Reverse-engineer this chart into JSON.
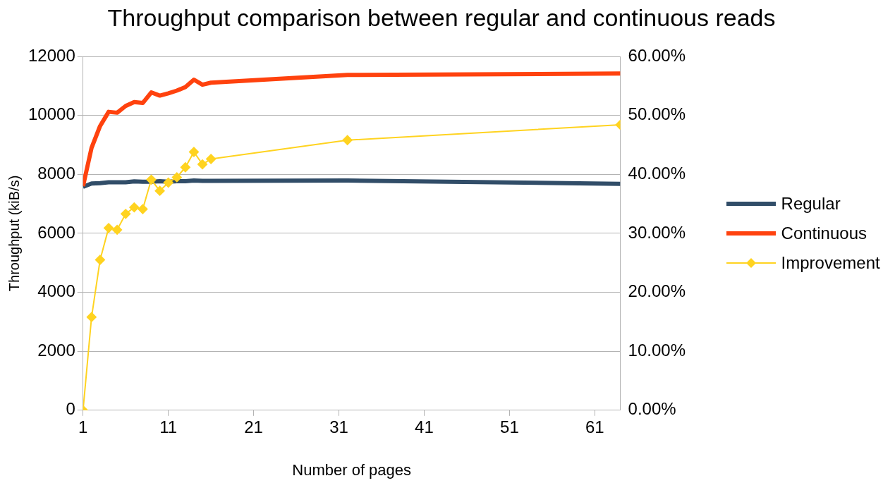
{
  "chart_data": {
    "type": "line",
    "title": "Throughput comparison between regular and continuous reads",
    "xlabel": "Number of pages",
    "ylabel": "Throughput (kiB/s)",
    "x": [
      1,
      2,
      3,
      4,
      5,
      6,
      7,
      8,
      9,
      10,
      11,
      12,
      13,
      14,
      15,
      16,
      32,
      64
    ],
    "series": [
      {
        "name": "Regular",
        "color": "#314d68",
        "marker": "none",
        "values": [
          7580,
          7690,
          7700,
          7730,
          7730,
          7730,
          7760,
          7750,
          7750,
          7770,
          7750,
          7770,
          7770,
          7790,
          7780,
          7780,
          7790,
          7680
        ]
      },
      {
        "name": "Continuous",
        "color": "#ff420e",
        "marker": "none",
        "values": [
          7600,
          8900,
          9640,
          10120,
          10090,
          10320,
          10450,
          10420,
          10780,
          10670,
          10750,
          10840,
          10960,
          11210,
          11040,
          11110,
          11370,
          11420
        ]
      },
      {
        "name": "Improvement",
        "color": "#ffd320",
        "marker": "diamond",
        "axis": "y2",
        "values": [
          0,
          15.8,
          25.5,
          30.9,
          30.6,
          33.3,
          34.4,
          34.1,
          39.1,
          37.2,
          38.6,
          39.5,
          41.2,
          43.8,
          41.7,
          42.6,
          45.8,
          48.4
        ]
      }
    ],
    "xlim": [
      1,
      64
    ],
    "xticks": [
      1,
      11,
      21,
      31,
      41,
      51,
      61
    ],
    "ylim": [
      0,
      12000
    ],
    "yticks": [
      0,
      2000,
      4000,
      6000,
      8000,
      10000,
      12000
    ],
    "y2lim": [
      0,
      60
    ],
    "y2ticks": [
      {
        "value": 0,
        "label": "0.00%"
      },
      {
        "value": 10,
        "label": "10.00%"
      },
      {
        "value": 20,
        "label": "20.00%"
      },
      {
        "value": 30,
        "label": "30.00%"
      },
      {
        "value": 40,
        "label": "40.00%"
      },
      {
        "value": 50,
        "label": "50.00%"
      },
      {
        "value": 60,
        "label": "60.00%"
      }
    ],
    "grid": "y",
    "legend": "right"
  }
}
